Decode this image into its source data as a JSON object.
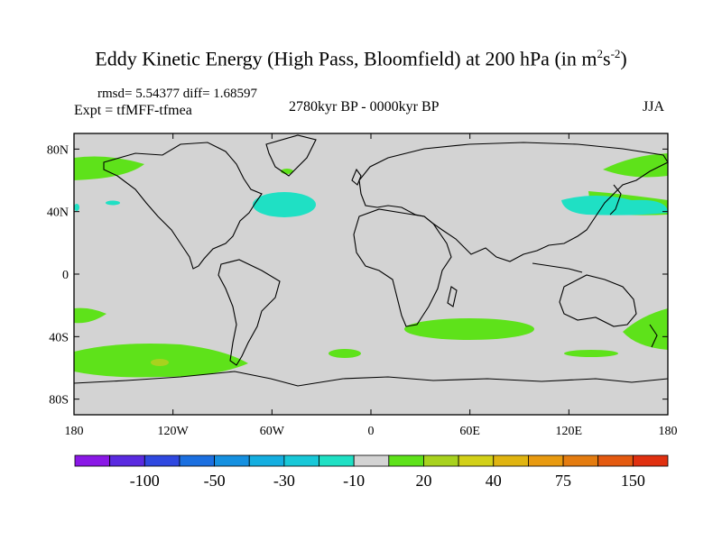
{
  "title": {
    "main": "Eddy Kinetic Energy (High Pass, Bloomfield) at 200 hPa (in m",
    "sup1": "2",
    "mid": "s",
    "sup2": "-2",
    "end": ")"
  },
  "stats": "rmsd= 5.54377 diff= 1.68597",
  "experiment": "Expt = tfMFF-tfmea",
  "period": "2780kyr BP - 0000kyr BP",
  "season": "JJA",
  "colors": {
    "land_fill": "#d3d3d3",
    "positive_small": "#5ee21a",
    "positive_mid": "#a8d21e",
    "negative_small": "#1fe0c4",
    "coast": "#000000"
  },
  "map": {
    "lat_ticks": [
      {
        "value": 80,
        "label": "80N"
      },
      {
        "value": 40,
        "label": "40N"
      },
      {
        "value": 0,
        "label": "0"
      },
      {
        "value": -40,
        "label": "40S"
      },
      {
        "value": -80,
        "label": "80S"
      }
    ],
    "lon_ticks": [
      {
        "value": -180,
        "label": "180"
      },
      {
        "value": -120,
        "label": "120W"
      },
      {
        "value": -60,
        "label": "60W"
      },
      {
        "value": 0,
        "label": "0"
      },
      {
        "value": 60,
        "label": "60E"
      },
      {
        "value": 120,
        "label": "120E"
      },
      {
        "value": 180,
        "label": "180"
      }
    ]
  },
  "colorbar": {
    "colors": [
      "#8a18e6",
      "#5a2ae0",
      "#2f48e0",
      "#1b6fe0",
      "#1590e0",
      "#14aee0",
      "#18c8d8",
      "#1fe0c4",
      "#d3d3d3",
      "#5ee21a",
      "#a8d21e",
      "#d2d018",
      "#e0b410",
      "#e89a10",
      "#e47c10",
      "#e45a10",
      "#e03010"
    ],
    "labels": [
      "-100",
      "-50",
      "-30",
      "-10",
      "20",
      "40",
      "75",
      "150"
    ]
  }
}
